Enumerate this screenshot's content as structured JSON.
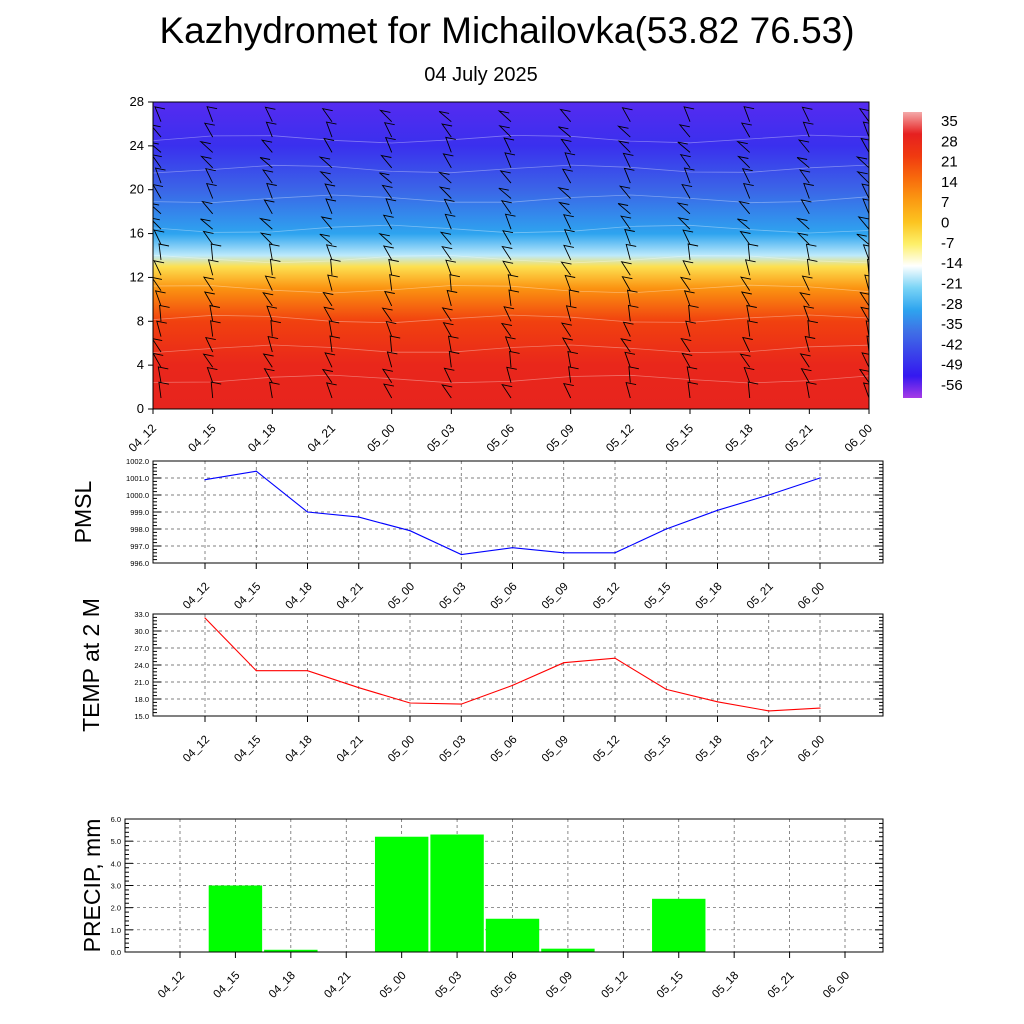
{
  "title": "Kazhydromet for Michailovka(53.82 76.53)",
  "subtitle": "04 July 2025",
  "time_labels": [
    "04_12",
    "04_15",
    "04_18",
    "04_21",
    "05_00",
    "05_03",
    "05_06",
    "05_09",
    "05_12",
    "05_15",
    "05_18",
    "05_21",
    "06_00"
  ],
  "chart_data": [
    {
      "type": "heatmap",
      "title": "",
      "xlabel": "",
      "ylabel": "",
      "x": [
        "04_12",
        "04_15",
        "04_18",
        "04_21",
        "05_00",
        "05_03",
        "05_06",
        "05_09",
        "05_12",
        "05_15",
        "05_18",
        "05_21",
        "06_00"
      ],
      "ylim": [
        0,
        28
      ],
      "yticks": [
        0,
        4,
        8,
        12,
        16,
        20,
        24,
        28
      ],
      "colorbar": {
        "labels": [
          "35",
          "28",
          "21",
          "14",
          "7",
          "0",
          "-7",
          "-14",
          "-21",
          "-28",
          "-35",
          "-42",
          "-49",
          "-56"
        ],
        "colors": [
          "#f4aaaa",
          "#e62020",
          "#f03a10",
          "#f86a0c",
          "#fb9a12",
          "#fcc420",
          "#fdf06a",
          "#ffffff",
          "#7ad4f6",
          "#2ea4ef",
          "#3f6fe6",
          "#3a42ea",
          "#3418f0",
          "#a63ae6"
        ]
      },
      "temperature_profile": [
        {
          "level": 0,
          "temp": 27
        },
        {
          "level": 4,
          "temp": 26
        },
        {
          "level": 8,
          "temp": 20
        },
        {
          "level": 11,
          "temp": 8
        },
        {
          "level": 13,
          "temp": -5
        },
        {
          "level": 14,
          "temp": -18
        },
        {
          "level": 16,
          "temp": -28
        },
        {
          "level": 20,
          "temp": -40
        },
        {
          "level": 24,
          "temp": -50
        },
        {
          "level": 28,
          "temp": -55
        }
      ],
      "wind_barbs": true
    },
    {
      "type": "line",
      "ylabel": "PMSL",
      "x": [
        "04_12",
        "04_15",
        "04_18",
        "04_21",
        "05_00",
        "05_03",
        "05_06",
        "05_09",
        "05_12",
        "05_15",
        "05_18",
        "05_21",
        "06_00"
      ],
      "ylim": [
        996.0,
        1002.0
      ],
      "yticks": [
        "996.0",
        "997.0",
        "998.0",
        "999.0",
        "1000.0",
        "1001.0",
        "1002.0"
      ],
      "series": [
        {
          "color": "#0000ff",
          "values": [
            1000.9,
            1001.4,
            999.0,
            998.7,
            997.9,
            996.5,
            996.9,
            996.6,
            996.6,
            998.0,
            999.1,
            1000.0,
            1001.0
          ]
        }
      ]
    },
    {
      "type": "line",
      "ylabel": "TEMP at 2 M",
      "x": [
        "04_12",
        "04_15",
        "04_18",
        "04_21",
        "05_00",
        "05_03",
        "05_06",
        "05_09",
        "05_12",
        "05_15",
        "05_18",
        "05_21",
        "06_00"
      ],
      "ylim": [
        15.0,
        33.0
      ],
      "yticks": [
        "15.0",
        "18.0",
        "21.0",
        "24.0",
        "27.0",
        "30.0",
        "33.0"
      ],
      "series": [
        {
          "color": "#ff0000",
          "values": [
            32.3,
            23.0,
            23.0,
            20.0,
            17.3,
            17.1,
            20.4,
            24.4,
            25.2,
            19.7,
            17.5,
            15.9,
            16.4
          ]
        }
      ]
    },
    {
      "type": "bar",
      "ylabel": "PRECIP, mm",
      "categories": [
        "04_12",
        "04_15",
        "04_18",
        "04_21",
        "05_00",
        "05_03",
        "05_06",
        "05_09",
        "05_12",
        "05_15",
        "05_18",
        "05_21",
        "06_00"
      ],
      "ylim": [
        0.0,
        6.0
      ],
      "yticks": [
        "0.0",
        "1.0",
        "2.0",
        "3.0",
        "4.0",
        "5.0",
        "6.0"
      ],
      "bar_color": "#00ff00",
      "values": [
        0.0,
        3.0,
        0.1,
        0.0,
        5.2,
        5.3,
        1.5,
        0.15,
        0.0,
        2.4,
        0.0,
        0.0,
        0.0
      ]
    }
  ]
}
